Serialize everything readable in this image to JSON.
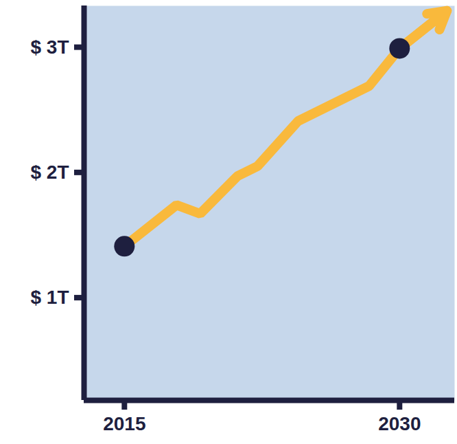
{
  "chart_data": {
    "type": "line",
    "xlim": [
      2012.8,
      2033
    ],
    "xticks": [
      2015,
      2030
    ],
    "ylim": [
      0.18,
      3.33
    ],
    "yticks": [
      {
        "value": 1,
        "label": "$ 1T"
      },
      {
        "value": 2,
        "label": "$ 2T"
      },
      {
        "value": 3,
        "label": "$ 3T"
      }
    ],
    "grid": false,
    "series": [
      {
        "type": "line",
        "color": "#f9b93c",
        "marker": "arrow",
        "x": [
          2015,
          2017.84,
          2019.13,
          2021.16,
          2022.26,
          2024.47,
          2028.34,
          2030,
          2032.58
        ],
        "values": [
          1.41,
          1.74,
          1.67,
          1.97,
          2.05,
          2.41,
          2.69,
          2.99,
          3.29
        ]
      },
      {
        "type": "scatter",
        "color": "#1e1f3f",
        "marker": "circle",
        "x": [
          2015,
          2030
        ],
        "values": [
          1.41,
          2.99
        ]
      }
    ]
  }
}
